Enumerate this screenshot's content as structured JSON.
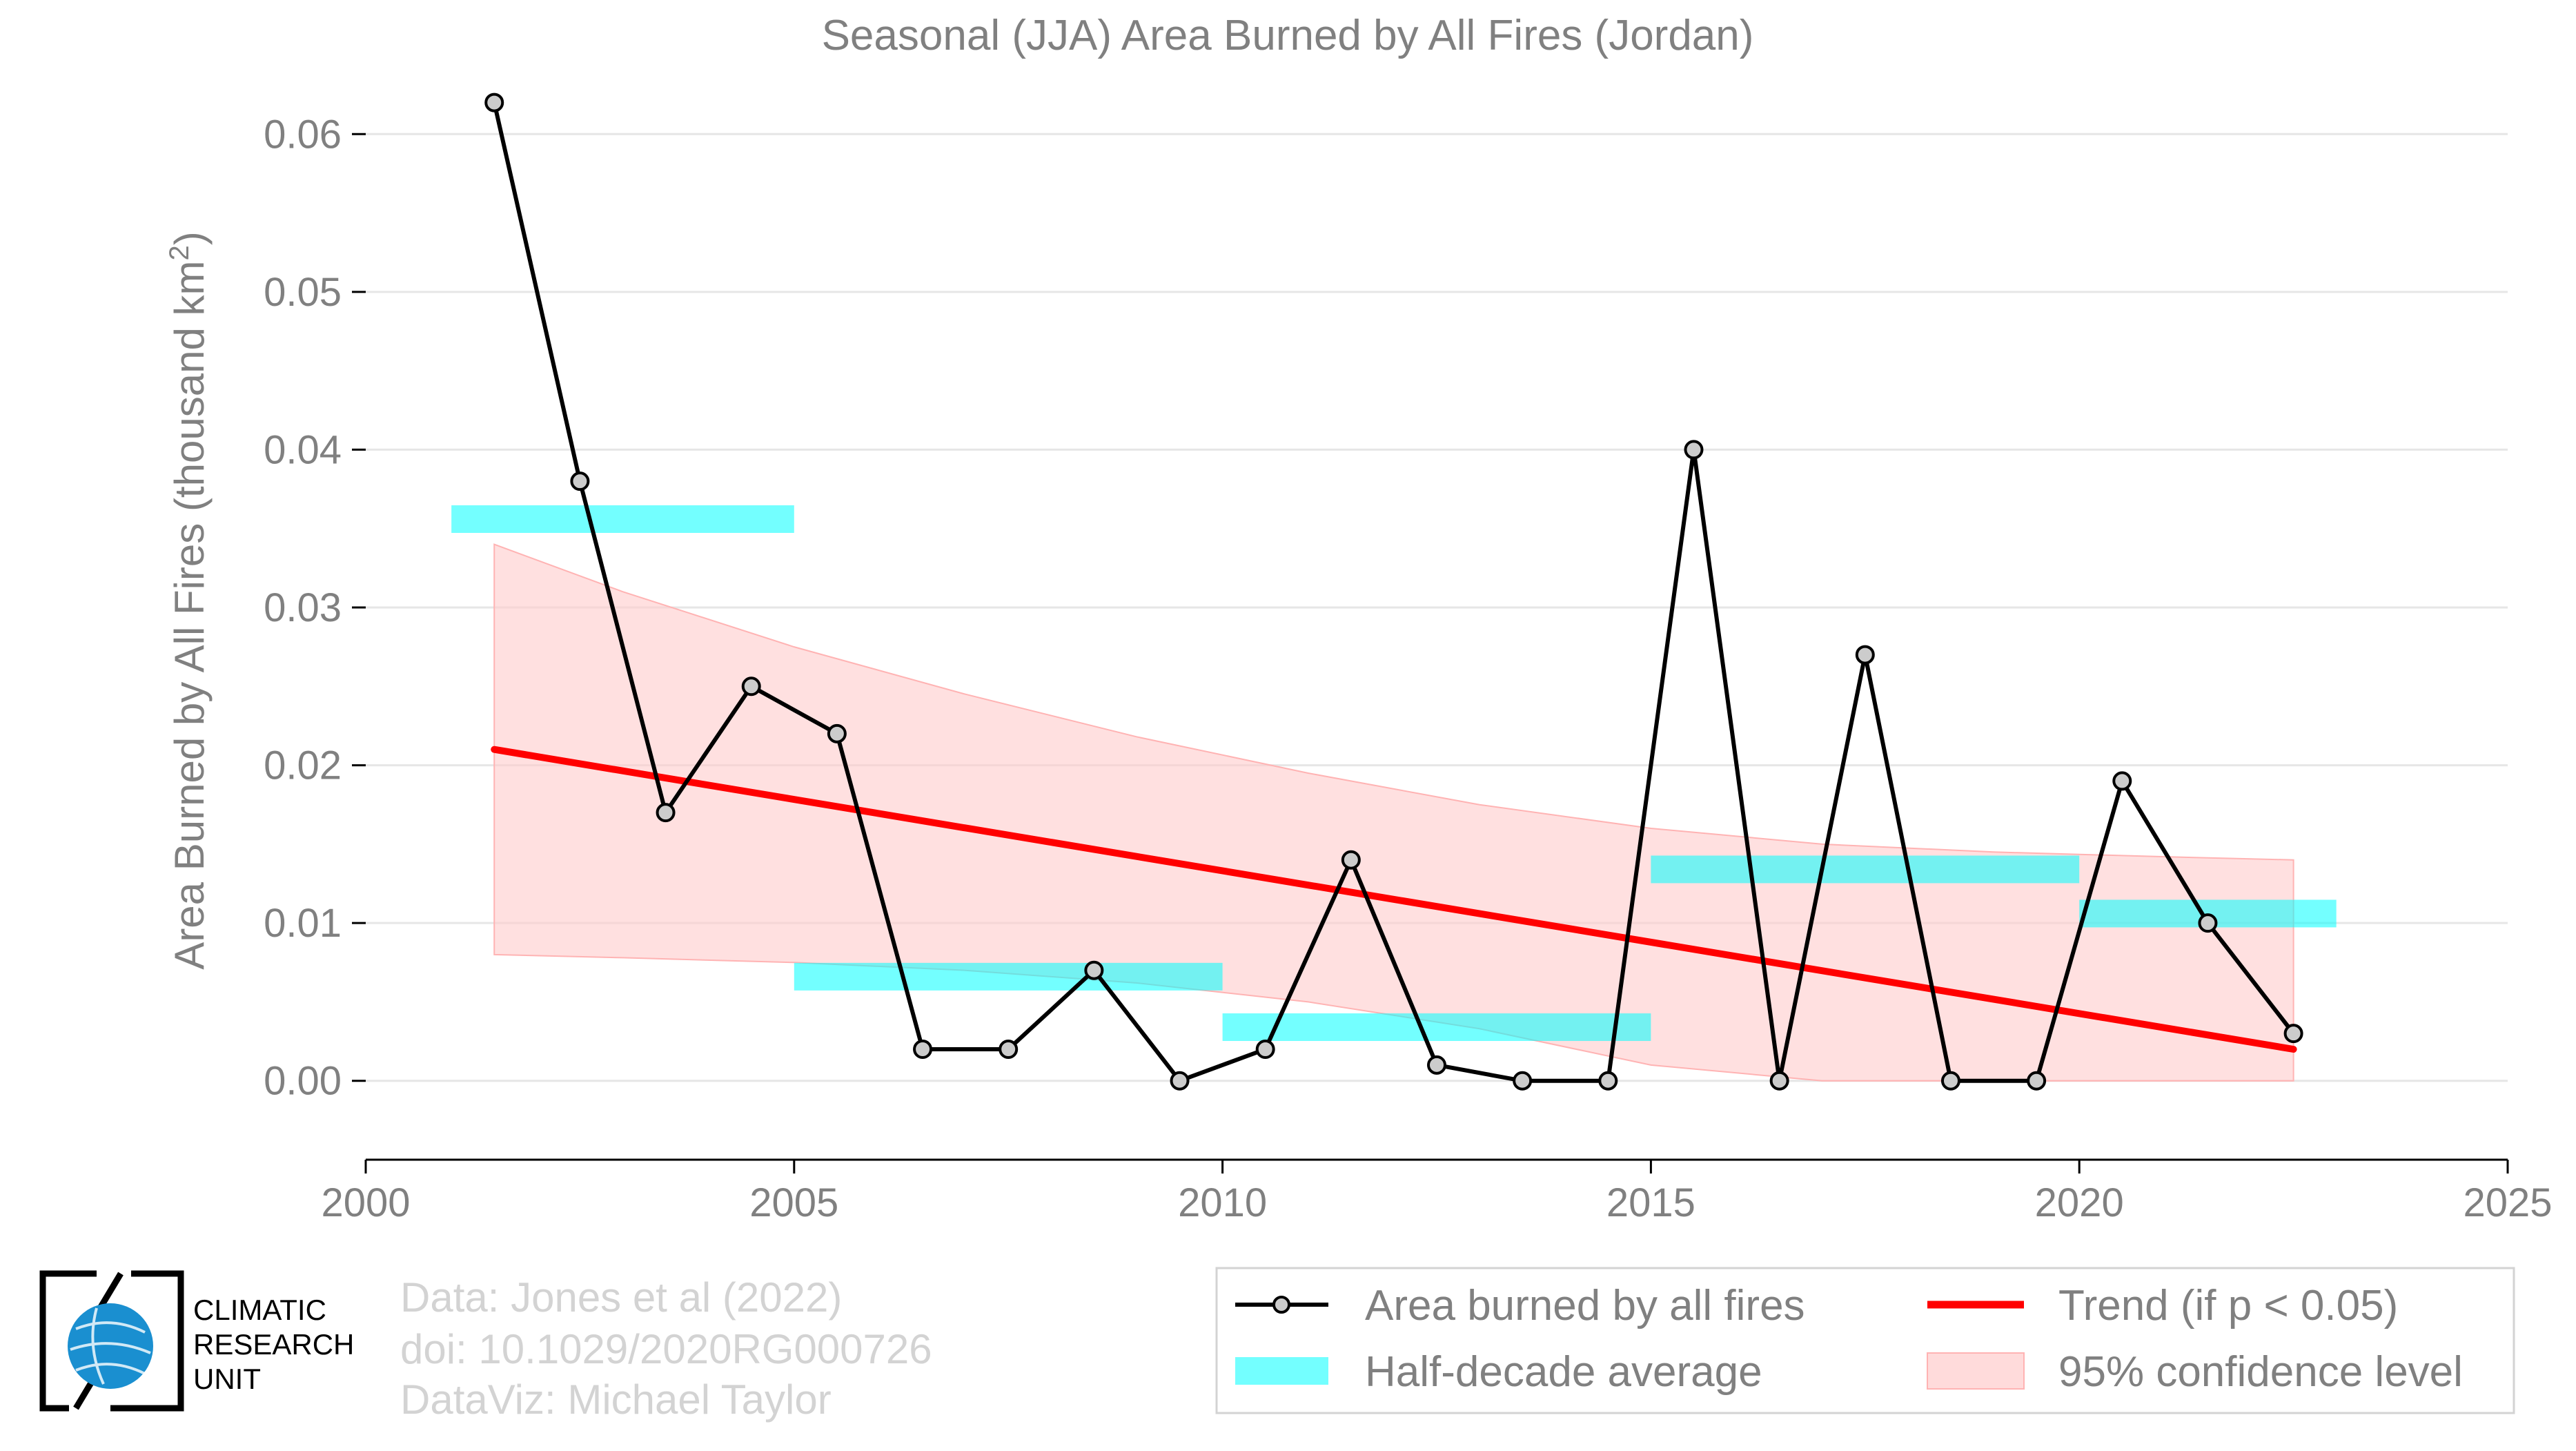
{
  "chart_data": {
    "type": "line",
    "title": "Seasonal (JJA) Area Burned by All Fires (Jordan)",
    "ylabel": "Area Burned by All Fires (thousand km",
    "ylabel_sup": "2",
    "ylabel_end": ")",
    "xlim": [
      2000,
      2025
    ],
    "ylim": [
      -0.005,
      0.065
    ],
    "xticks": [
      2000,
      2005,
      2010,
      2015,
      2020,
      2025
    ],
    "xtick_labels": [
      "2000",
      "2005",
      "2010",
      "2015",
      "2020",
      "2025"
    ],
    "yticks": [
      0,
      0.01,
      0.02,
      0.03,
      0.04,
      0.05,
      0.06
    ],
    "ytick_labels": [
      "0.00",
      "0.01",
      "0.02",
      "0.03",
      "0.04",
      "0.05",
      "0.06"
    ],
    "grid": "horizontal",
    "series": [
      {
        "name": "Area burned by all fires",
        "color": "#000000",
        "marker_fill": "#cccccc",
        "x": [
          2001.5,
          2002.5,
          2003.5,
          2004.5,
          2005.5,
          2006.5,
          2007.5,
          2008.5,
          2009.5,
          2010.5,
          2011.5,
          2012.5,
          2013.5,
          2014.5,
          2015.5,
          2016.5,
          2017.5,
          2018.5,
          2019.5,
          2020.5,
          2021.5,
          2022.5
        ],
        "values": [
          0.062,
          0.038,
          0.017,
          0.025,
          0.022,
          0.002,
          0.002,
          0.007,
          0.0,
          0.002,
          0.014,
          0.001,
          0.0,
          0.0,
          0.04,
          0.0,
          0.027,
          0.0,
          0.0,
          0.019,
          0.01,
          0.003
        ]
      }
    ],
    "half_decade_average": {
      "name": "Half-decade average",
      "color": "#00ffff",
      "segments": [
        {
          "x0": 2001,
          "x1": 2005,
          "value": 0.0356
        },
        {
          "x0": 2005,
          "x1": 2010,
          "value": 0.0066
        },
        {
          "x0": 2010,
          "x1": 2015,
          "value": 0.0034
        },
        {
          "x0": 2015,
          "x1": 2020,
          "value": 0.0134
        },
        {
          "x0": 2020,
          "x1": 2023,
          "value": 0.0106
        }
      ]
    },
    "trend": {
      "name": "Trend (if p < 0.05)",
      "color": "#ff0000",
      "x": [
        2001.5,
        2022.5
      ],
      "values": [
        0.021,
        0.002
      ]
    },
    "confidence": {
      "name": "95% confidence level",
      "color": "#ffcccc",
      "x": [
        2001.5,
        2003,
        2005,
        2007,
        2009,
        2011,
        2013,
        2015,
        2017,
        2019,
        2021,
        2022.5
      ],
      "upper": [
        0.034,
        0.031,
        0.0275,
        0.0245,
        0.0218,
        0.0195,
        0.0175,
        0.016,
        0.015,
        0.0145,
        0.0142,
        0.014
      ],
      "lower": [
        0.008,
        0.0078,
        0.0075,
        0.007,
        0.0062,
        0.005,
        0.0033,
        0.001,
        0.0,
        0.0,
        0.0,
        0.0
      ]
    },
    "legend": {
      "position": "bottom-right",
      "items": [
        "Area burned by all fires",
        "Trend (if p < 0.05)",
        "Half-decade average",
        "95% confidence level"
      ]
    }
  },
  "credits": {
    "line1": "Data: Jones et al (2022)",
    "line2": "doi: 10.1029/2020RG000726",
    "line3": "DataViz: Michael Taylor"
  },
  "logo": {
    "line1": "CLIMATIC",
    "line2": "RESEARCH",
    "line3": "UNIT",
    "color": "#1a8fd0"
  }
}
